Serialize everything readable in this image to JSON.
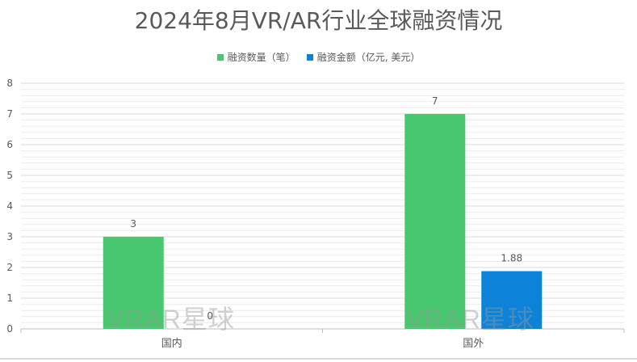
{
  "chart_data": {
    "type": "bar",
    "title": "2024年8月VR/AR行业全球融资情况",
    "categories": [
      "国内",
      "国外"
    ],
    "series": [
      {
        "name": "融资数量（笔）",
        "values": [
          3,
          7
        ],
        "labels": [
          "3",
          "7"
        ],
        "color": "#48c86e"
      },
      {
        "name": "融资金额（亿元, 美元）",
        "values": [
          0,
          1.88
        ],
        "labels": [
          "0",
          "1.88"
        ],
        "color": "#0c83d9"
      }
    ],
    "ylim": [
      0,
      8
    ],
    "yticks": [
      "0",
      "1",
      "2",
      "3",
      "4",
      "5",
      "6",
      "7",
      "8"
    ],
    "grid": true,
    "legend_position": "top"
  },
  "watermark": "VRAR星球",
  "colors": {
    "title": "#595959",
    "axis_text": "#595959",
    "gridline": "#d9d9d9"
  }
}
